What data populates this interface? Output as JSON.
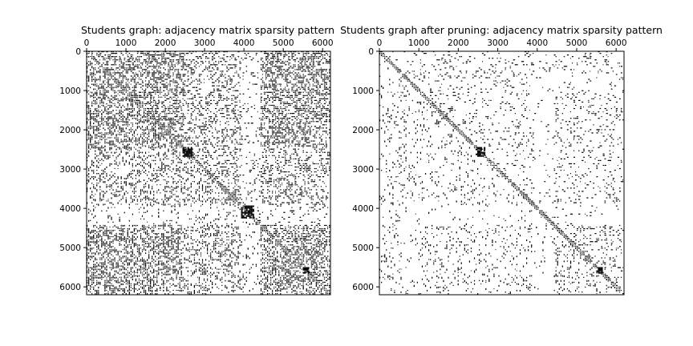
{
  "chart_data": [
    {
      "type": "heatmap",
      "subtype": "sparsity-pattern",
      "title": "Students graph: adjacency matrix sparsity pattern",
      "xlabel": "",
      "ylabel": "",
      "n_nodes": 6200,
      "xlim": [
        0,
        6200
      ],
      "ylim": [
        6200,
        0
      ],
      "x_axis_position": "top",
      "xticks": [
        0,
        1000,
        2000,
        3000,
        4000,
        5000,
        6000
      ],
      "yticks": [
        0,
        1000,
        2000,
        3000,
        4000,
        5000,
        6000
      ],
      "xtick_labels": [
        "0",
        "1000",
        "2000",
        "3000",
        "4000",
        "5000",
        "6000"
      ],
      "ytick_labels": [
        "0",
        "1000",
        "2000",
        "3000",
        "4000",
        "5000",
        "6000"
      ],
      "grid": false,
      "marker_color": "#000000",
      "density": "high",
      "dense_blocks": [
        [
          2450,
          2650
        ],
        [
          5500,
          5650
        ],
        [
          3950,
          4250
        ]
      ],
      "dense_bands": [
        [
          0,
          2450
        ],
        [
          4400,
          6100
        ]
      ],
      "sparse_regions": [
        [
          3900,
          4400
        ]
      ]
    },
    {
      "type": "heatmap",
      "subtype": "sparsity-pattern",
      "title": "Students graph after pruning: adjacency matrix sparsity pattern",
      "xlabel": "",
      "ylabel": "",
      "n_nodes": 6200,
      "xlim": [
        0,
        6200
      ],
      "ylim": [
        6200,
        0
      ],
      "x_axis_position": "top",
      "xticks": [
        0,
        1000,
        2000,
        3000,
        4000,
        5000,
        6000
      ],
      "yticks": [
        0,
        1000,
        2000,
        3000,
        4000,
        5000,
        6000
      ],
      "xtick_labels": [
        "0",
        "1000",
        "2000",
        "3000",
        "4000",
        "5000",
        "6000"
      ],
      "ytick_labels": [
        "0",
        "1000",
        "2000",
        "3000",
        "4000",
        "5000",
        "6000"
      ],
      "grid": false,
      "marker_color": "#000000",
      "density": "low",
      "dense_blocks": [
        [
          2450,
          2650
        ],
        [
          5500,
          5650
        ]
      ],
      "dense_bands": [
        [
          4400,
          6000
        ]
      ],
      "sparse_regions": [
        [
          3900,
          4400
        ]
      ]
    }
  ]
}
